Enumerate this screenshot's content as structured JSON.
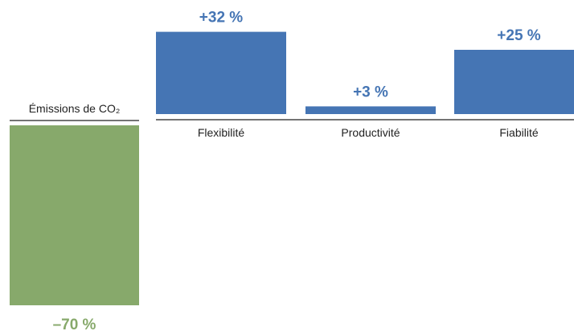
{
  "chart_data": {
    "type": "bar",
    "categories": [
      "Émissions de CO₂",
      "Flexibilité",
      "Productivité",
      "Fiabilité"
    ],
    "values": [
      -70,
      32,
      3,
      25
    ],
    "value_labels": [
      "–70 %",
      "+32 %",
      "+3 %",
      "+25 %"
    ],
    "colors": {
      "negative": "#87a96b",
      "positive": "#4575b4",
      "negative_label": "#87a96b",
      "positive_label": "#4575b4",
      "baseline": "#222222"
    },
    "grid": false,
    "legend": "none"
  }
}
